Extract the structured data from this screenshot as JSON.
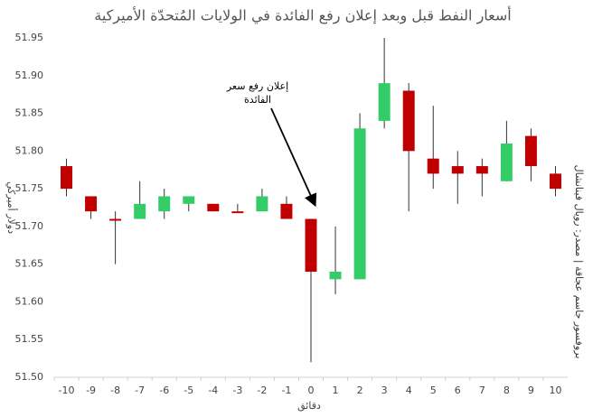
{
  "chart_data": {
    "type": "candlestick",
    "title": "أسعار النفط قبل وبعد إعلان رفع الفائدة في الولايات المُتحدّة الأميركية",
    "y_label": "دولار أميركي",
    "x_label": "دقائق",
    "source": "بروفسور جاسم عجاقة | مصدر: رويال فينانشال",
    "annotation": [
      "إعلان رفع سعر",
      "الفائدة"
    ],
    "categories": [
      "-10",
      "-9",
      "-8",
      "-7",
      "-6",
      "-5",
      "-4",
      "-3",
      "-2",
      "-1",
      "0",
      "1",
      "2",
      "3",
      "4",
      "5",
      "6",
      "7",
      "8",
      "9",
      "10"
    ],
    "open": [
      51.78,
      51.74,
      51.71,
      51.71,
      51.72,
      51.73,
      51.73,
      51.72,
      51.72,
      51.73,
      51.71,
      51.63,
      51.63,
      51.84,
      51.88,
      51.79,
      51.78,
      51.78,
      51.76,
      51.82,
      51.77
    ],
    "high": [
      51.79,
      51.74,
      51.72,
      51.76,
      51.75,
      51.74,
      51.73,
      51.73,
      51.75,
      51.74,
      51.71,
      51.7,
      51.85,
      51.95,
      51.89,
      51.86,
      51.8,
      51.79,
      51.84,
      51.83,
      51.78
    ],
    "low": [
      51.74,
      51.71,
      51.65,
      51.71,
      51.71,
      51.72,
      51.72,
      51.72,
      51.72,
      51.71,
      51.52,
      51.61,
      51.63,
      51.83,
      51.72,
      51.75,
      51.73,
      51.74,
      51.76,
      51.76,
      51.74
    ],
    "close": [
      51.75,
      51.72,
      51.71,
      51.73,
      51.74,
      51.74,
      51.72,
      51.72,
      51.74,
      51.71,
      51.64,
      51.64,
      51.83,
      51.89,
      51.8,
      51.77,
      51.77,
      51.77,
      51.81,
      51.78,
      51.75
    ],
    "up_color": "#33cc66",
    "down_color": "#c00000",
    "ylim": [
      51.5,
      51.95
    ],
    "yticks": [
      {
        "value": 51.5,
        "label": "51.50"
      },
      {
        "value": 51.55,
        "label": "51.55"
      },
      {
        "value": 51.6,
        "label": "51.60"
      },
      {
        "value": 51.65,
        "label": "51.65"
      },
      {
        "value": 51.7,
        "label": "51.70"
      },
      {
        "value": 51.75,
        "label": "51.75"
      },
      {
        "value": 51.8,
        "label": "51.80"
      },
      {
        "value": 51.85,
        "label": "51.85"
      },
      {
        "value": 51.9,
        "label": "51.90"
      },
      {
        "value": 51.95,
        "label": "51.95"
      }
    ],
    "grid": false
  }
}
